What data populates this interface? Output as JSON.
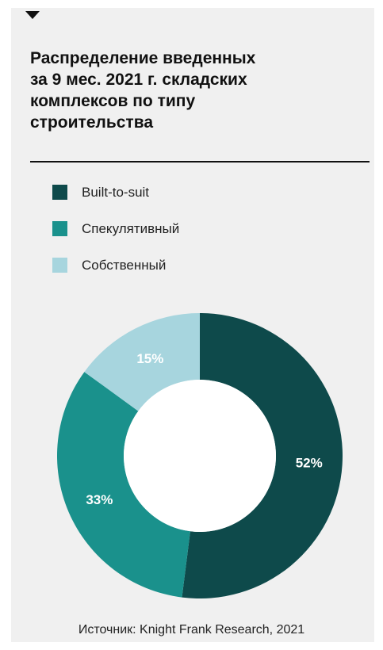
{
  "title_lines": [
    "Распределение введенных",
    "за 9 мес. 2021 г. складских",
    "комплексов по типу",
    "строительства"
  ],
  "source": "Источник: Knight Frank Research, 2021",
  "icons": {
    "header_marker": "caret-down-icon"
  },
  "chart_data": {
    "type": "pie",
    "style": "donut",
    "categories": [
      "Built-to-suit",
      "Спекулятивный",
      "Собственный"
    ],
    "values": [
      52,
      33,
      15
    ],
    "value_labels": [
      "52%",
      "33%",
      "15%"
    ],
    "colors": [
      "#0e4a4b",
      "#1a918c",
      "#a7d5de"
    ],
    "legend_position": "top-left",
    "start_angle": "12 o'clock, clockwise"
  }
}
